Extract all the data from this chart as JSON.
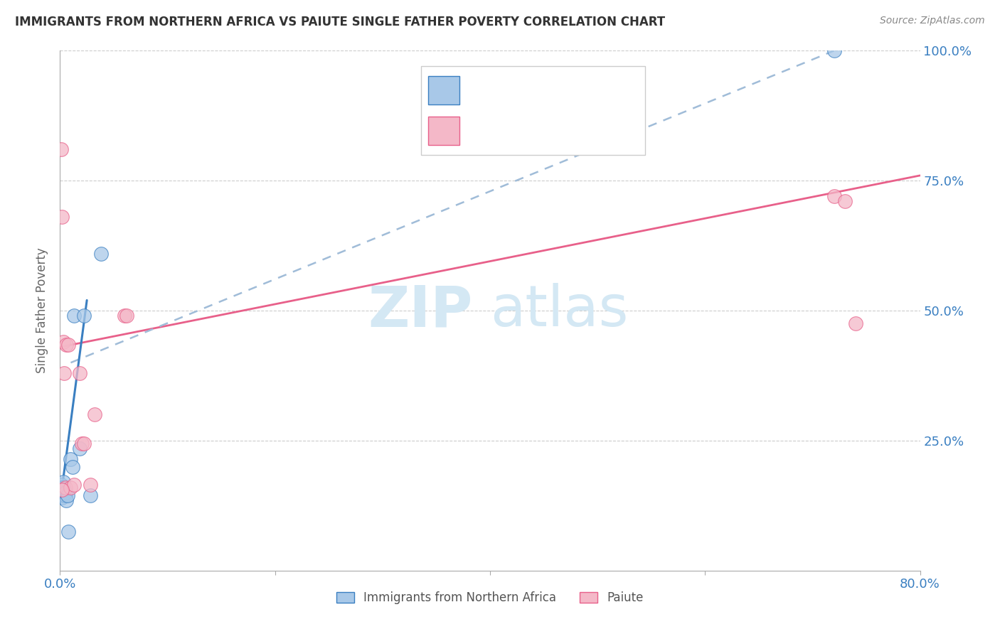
{
  "title": "IMMIGRANTS FROM NORTHERN AFRICA VS PAIUTE SINGLE FATHER POVERTY CORRELATION CHART",
  "source": "Source: ZipAtlas.com",
  "ylabel": "Single Father Poverty",
  "legend_label_blue": "Immigrants from Northern Africa",
  "legend_label_pink": "Paiute",
  "blue_scatter_color": "#a8c8e8",
  "pink_scatter_color": "#f4b8c8",
  "blue_line_color": "#3a7fc1",
  "pink_line_color": "#e8608a",
  "blue_dashed_color": "#a0bcd8",
  "watermark_color": "#d4e8f4",
  "xlim": [
    0.0,
    0.8
  ],
  "ylim": [
    0.0,
    1.0
  ],
  "yticks": [
    0.0,
    0.25,
    0.5,
    0.75,
    1.0
  ],
  "ytick_labels": [
    "",
    "25.0%",
    "50.0%",
    "75.0%",
    "100.0%"
  ],
  "xticks": [
    0.0,
    0.2,
    0.4,
    0.6,
    0.8
  ],
  "xtick_labels": [
    "0.0%",
    "",
    "",
    "",
    "80.0%"
  ],
  "blue_points_x": [
    0.0005,
    0.001,
    0.001,
    0.0015,
    0.002,
    0.002,
    0.002,
    0.003,
    0.003,
    0.003,
    0.004,
    0.004,
    0.005,
    0.005,
    0.006,
    0.007,
    0.008,
    0.01,
    0.012,
    0.013,
    0.018,
    0.022,
    0.028,
    0.038,
    0.72
  ],
  "blue_points_y": [
    0.155,
    0.16,
    0.165,
    0.15,
    0.155,
    0.16,
    0.14,
    0.155,
    0.16,
    0.17,
    0.145,
    0.155,
    0.145,
    0.15,
    0.135,
    0.145,
    0.075,
    0.215,
    0.2,
    0.49,
    0.235,
    0.49,
    0.145,
    0.61,
    1.0
  ],
  "pink_points_x": [
    0.001,
    0.002,
    0.003,
    0.005,
    0.006,
    0.008,
    0.01,
    0.013,
    0.018,
    0.02,
    0.022,
    0.028,
    0.032,
    0.06,
    0.062,
    0.72,
    0.73,
    0.74,
    0.002,
    0.004
  ],
  "pink_points_y": [
    0.81,
    0.68,
    0.44,
    0.16,
    0.435,
    0.435,
    0.16,
    0.165,
    0.38,
    0.245,
    0.245,
    0.165,
    0.3,
    0.49,
    0.49,
    0.72,
    0.71,
    0.475,
    0.155,
    0.38
  ],
  "blue_solid_line_x": [
    0.0,
    0.025
  ],
  "blue_solid_line_y": [
    0.13,
    0.52
  ],
  "blue_dashed_line_x": [
    0.01,
    0.72
  ],
  "blue_dashed_line_y": [
    0.4,
    1.0
  ],
  "pink_line_x": [
    0.0,
    0.8
  ],
  "pink_line_y": [
    0.43,
    0.76
  ]
}
